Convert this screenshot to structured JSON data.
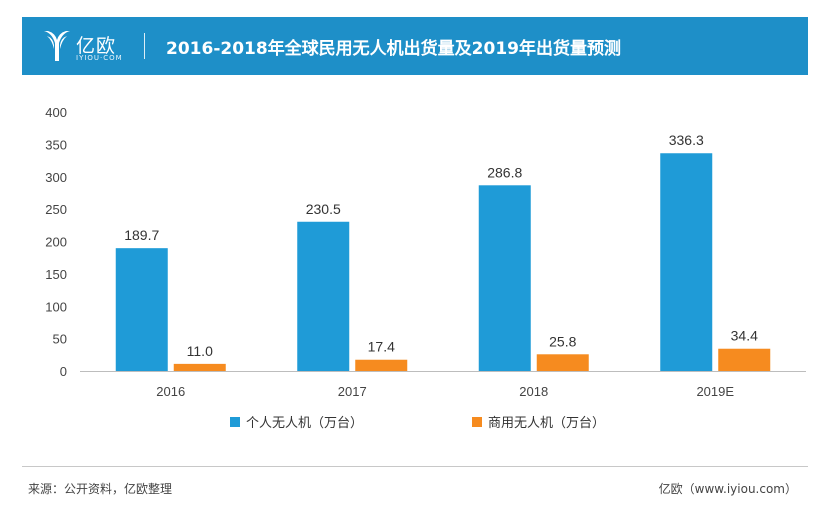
{
  "header": {
    "logo_text": "亿欧",
    "logo_sub": "IYIOU·COM",
    "title": "2016-2018年全球民用无人机出货量及2019年出货量预测"
  },
  "chart_data": {
    "type": "bar",
    "categories": [
      "2016",
      "2017",
      "2018",
      "2019E"
    ],
    "series": [
      {
        "name": "个人无人机（万台）",
        "values": [
          189.7,
          230.5,
          286.8,
          336.3
        ],
        "labels": [
          "189.7",
          "230.5",
          "286.8",
          "336.3"
        ],
        "color": "#1f9bd7"
      },
      {
        "name": "商用无人机（万台）",
        "values": [
          11.0,
          17.4,
          25.8,
          34.4
        ],
        "labels": [
          "11.0",
          "17.4",
          "25.8",
          "34.4"
        ],
        "color": "#f68b1f"
      }
    ],
    "ylim": [
      0,
      400
    ],
    "yticks": [
      0,
      50,
      100,
      150,
      200,
      250,
      300,
      350,
      400
    ],
    "grid": false,
    "legend": "bottom"
  },
  "footer": {
    "source": "来源：公开资料，亿欧整理",
    "site": "亿欧（www.iyiou.com）"
  }
}
